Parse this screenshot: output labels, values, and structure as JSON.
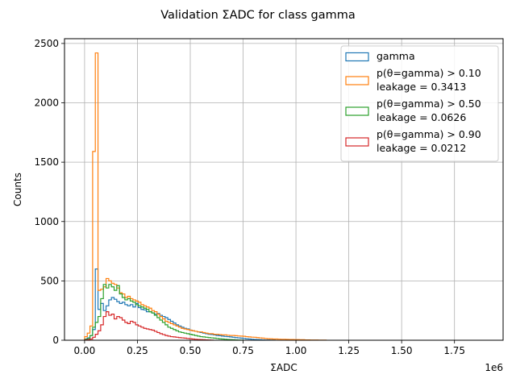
{
  "chart_data": {
    "type": "histogram-step",
    "title": "Validation ΣADC for class gamma",
    "xlabel": "ΣADC",
    "ylabel": "Counts",
    "x_offset_label": "1e6",
    "x_scale": 1000000,
    "xlim": [
      -0.095,
      1.98
    ],
    "ylim": [
      0,
      2540
    ],
    "x_ticks": [
      0.0,
      0.25,
      0.5,
      0.75,
      1.0,
      1.25,
      1.5,
      1.75
    ],
    "x_tick_labels": [
      "0.00",
      "0.25",
      "0.50",
      "0.75",
      "1.00",
      "1.25",
      "1.50",
      "1.75"
    ],
    "y_ticks": [
      0,
      500,
      1000,
      1500,
      2000,
      2500
    ],
    "y_tick_labels": [
      "0",
      "500",
      "1000",
      "1500",
      "2000",
      "2500"
    ],
    "grid": true,
    "legend_position": "top-right",
    "bin_edges_start": 0.0,
    "bin_width": 0.0127,
    "series": [
      {
        "name": "gamma",
        "legend_lines": [
          "gamma"
        ],
        "color": "#1f77b4",
        "values": [
          10,
          20,
          40,
          90,
          600,
          260,
          310,
          250,
          290,
          340,
          360,
          345,
          325,
          310,
          320,
          300,
          290,
          300,
          280,
          310,
          275,
          260,
          255,
          240,
          240,
          230,
          220,
          225,
          210,
          200,
          190,
          175,
          160,
          145,
          130,
          120,
          110,
          100,
          95,
          85,
          80,
          75,
          70,
          65,
          60,
          55,
          50,
          48,
          45,
          40,
          38,
          35,
          32,
          30,
          28,
          25,
          22,
          20,
          18,
          15,
          12,
          10,
          8,
          6,
          5,
          4,
          3,
          2,
          2,
          1,
          1
        ]
      },
      {
        "name": "p(θ=gamma) > 0.10",
        "legend_lines": [
          "p(θ=gamma) > 0.10",
          "leakage = 0.3413"
        ],
        "color": "#ff7f0e",
        "values": [
          30,
          60,
          120,
          1590,
          2420,
          420,
          430,
          450,
          520,
          500,
          480,
          470,
          440,
          400,
          390,
          360,
          370,
          350,
          340,
          330,
          320,
          300,
          290,
          280,
          270,
          250,
          240,
          220,
          200,
          180,
          160,
          150,
          140,
          130,
          120,
          110,
          100,
          95,
          90,
          85,
          80,
          75,
          70,
          70,
          65,
          60,
          55,
          55,
          50,
          50,
          48,
          45,
          45,
          42,
          40,
          40,
          38,
          36,
          35,
          33,
          30,
          28,
          26,
          25,
          22,
          20,
          18,
          15,
          13,
          12,
          10,
          10,
          9,
          8,
          8,
          7,
          6,
          6,
          5,
          5,
          4,
          4,
          3,
          3,
          2,
          2,
          2,
          1,
          1,
          1
        ]
      },
      {
        "name": "p(θ=gamma) > 0.50",
        "legend_lines": [
          "p(θ=gamma) > 0.50",
          "leakage = 0.0626"
        ],
        "color": "#2ca02c",
        "values": [
          5,
          15,
          40,
          110,
          150,
          200,
          350,
          470,
          440,
          470,
          450,
          420,
          460,
          390,
          360,
          340,
          350,
          330,
          320,
          300,
          290,
          280,
          270,
          260,
          240,
          230,
          210,
          190,
          170,
          150,
          130,
          110,
          100,
          90,
          80,
          70,
          65,
          60,
          55,
          50,
          45,
          40,
          35,
          30,
          28,
          25,
          22,
          20,
          18,
          15,
          12,
          10,
          8,
          6,
          5,
          4,
          3,
          2,
          1
        ]
      },
      {
        "name": "p(θ=gamma) > 0.90",
        "legend_lines": [
          "p(θ=gamma) > 0.90",
          "leakage = 0.0212"
        ],
        "color": "#d62728",
        "values": [
          2,
          5,
          10,
          25,
          50,
          80,
          130,
          200,
          240,
          210,
          220,
          180,
          200,
          190,
          170,
          150,
          140,
          160,
          150,
          130,
          120,
          110,
          100,
          95,
          90,
          85,
          75,
          65,
          55,
          48,
          40,
          35,
          30,
          28,
          25,
          22,
          20,
          18,
          15,
          13,
          10,
          8,
          6,
          5,
          4,
          3,
          2,
          1
        ]
      }
    ]
  }
}
